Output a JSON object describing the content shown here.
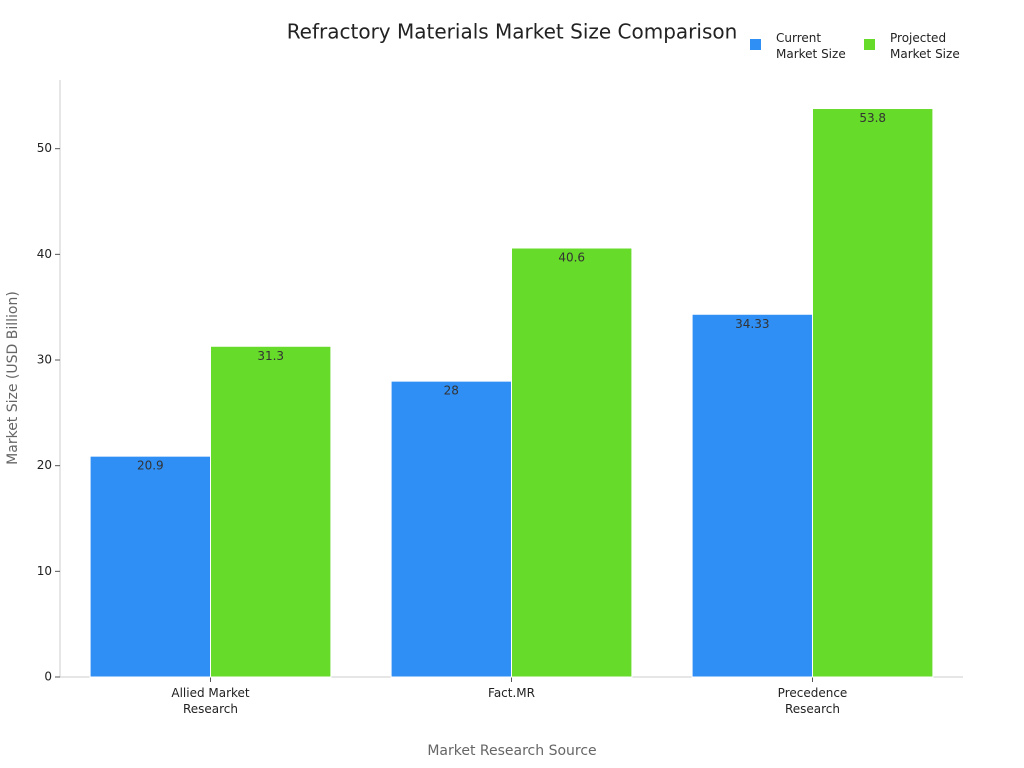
{
  "chart_data": {
    "type": "bar",
    "title": "Refractory Materials Market Size Comparison",
    "x_label": "Market Research Source",
    "y_label": "Market Size (USD Billion)",
    "categories": [
      "Allied Market Research",
      "Fact.MR",
      "Precedence Research"
    ],
    "series": [
      {
        "name": "Current Market Size",
        "color": "#2f8ff5",
        "values": [
          20.9,
          28,
          34.33
        ]
      },
      {
        "name": "Projected Market Size",
        "color": "#66db2a",
        "values": [
          31.3,
          40.6,
          53.8
        ]
      }
    ],
    "ylim": [
      0,
      56.5
    ],
    "yticks": [
      0,
      10,
      20,
      30,
      40,
      50
    ],
    "grid": false
  }
}
